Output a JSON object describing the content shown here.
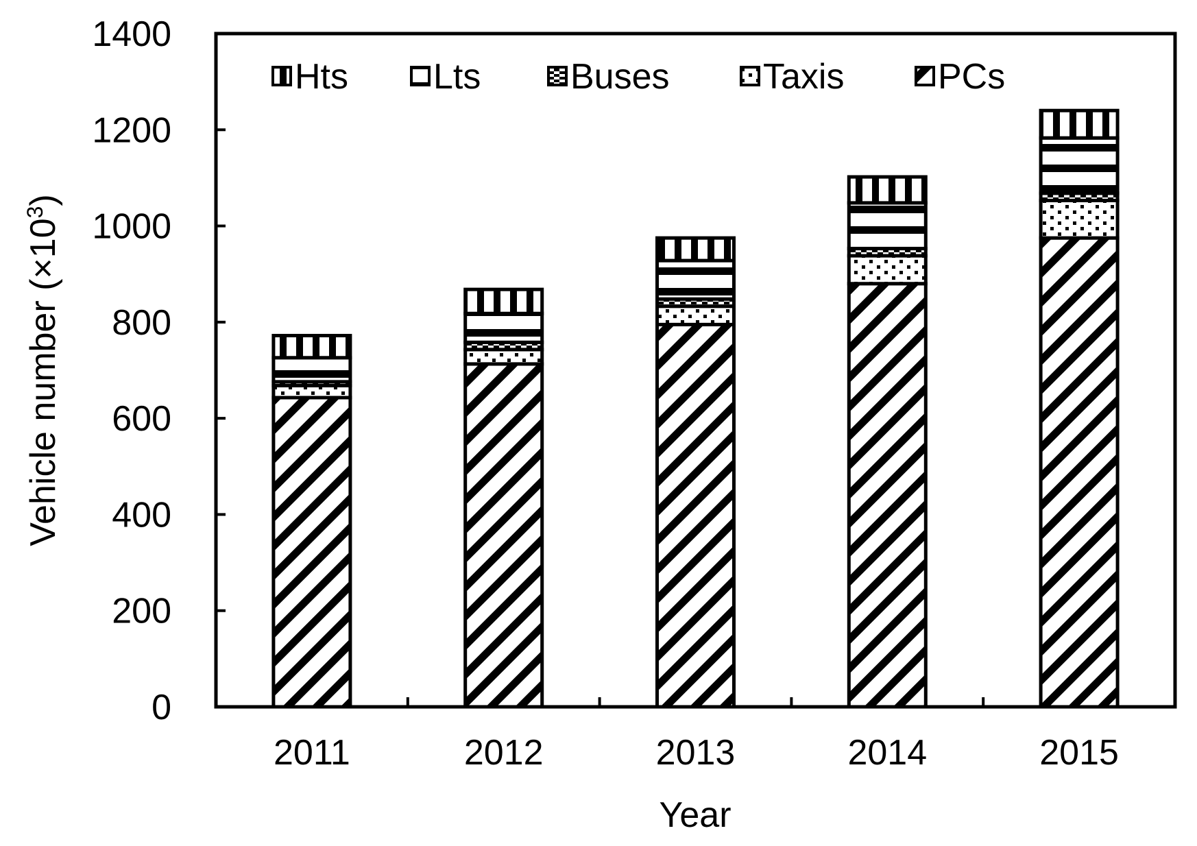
{
  "chart_data": {
    "type": "bar",
    "stacked": true,
    "title": "",
    "xlabel": "Year",
    "ylabel": {
      "main": "Vehicle number (",
      "sub": "×10",
      "exp": "3",
      "close": ")"
    },
    "categories": [
      "2011",
      "2012",
      "2013",
      "2014",
      "2015"
    ],
    "ylim": [
      0,
      1400
    ],
    "yticks": [
      "0",
      "200",
      "400",
      "600",
      "800",
      "1000",
      "1200",
      "1400"
    ],
    "legend_position": "top",
    "series": [
      {
        "name": "PCs",
        "pattern": "diagonal",
        "values": [
          643,
          713,
          795,
          880,
          975
        ]
      },
      {
        "name": "Taxis",
        "pattern": "dots",
        "values": [
          25,
          30,
          38,
          58,
          78
        ]
      },
      {
        "name": "Buses",
        "pattern": "checker",
        "values": [
          8,
          15,
          15,
          15,
          15
        ]
      },
      {
        "name": "Lts",
        "pattern": "horizontal",
        "values": [
          50,
          60,
          80,
          95,
          115
        ]
      },
      {
        "name": "Hts",
        "pattern": "vertical",
        "values": [
          46,
          50,
          47,
          54,
          57
        ]
      }
    ],
    "legend_order": [
      "Hts",
      "Lts",
      "Buses",
      "Taxis",
      "PCs"
    ]
  }
}
